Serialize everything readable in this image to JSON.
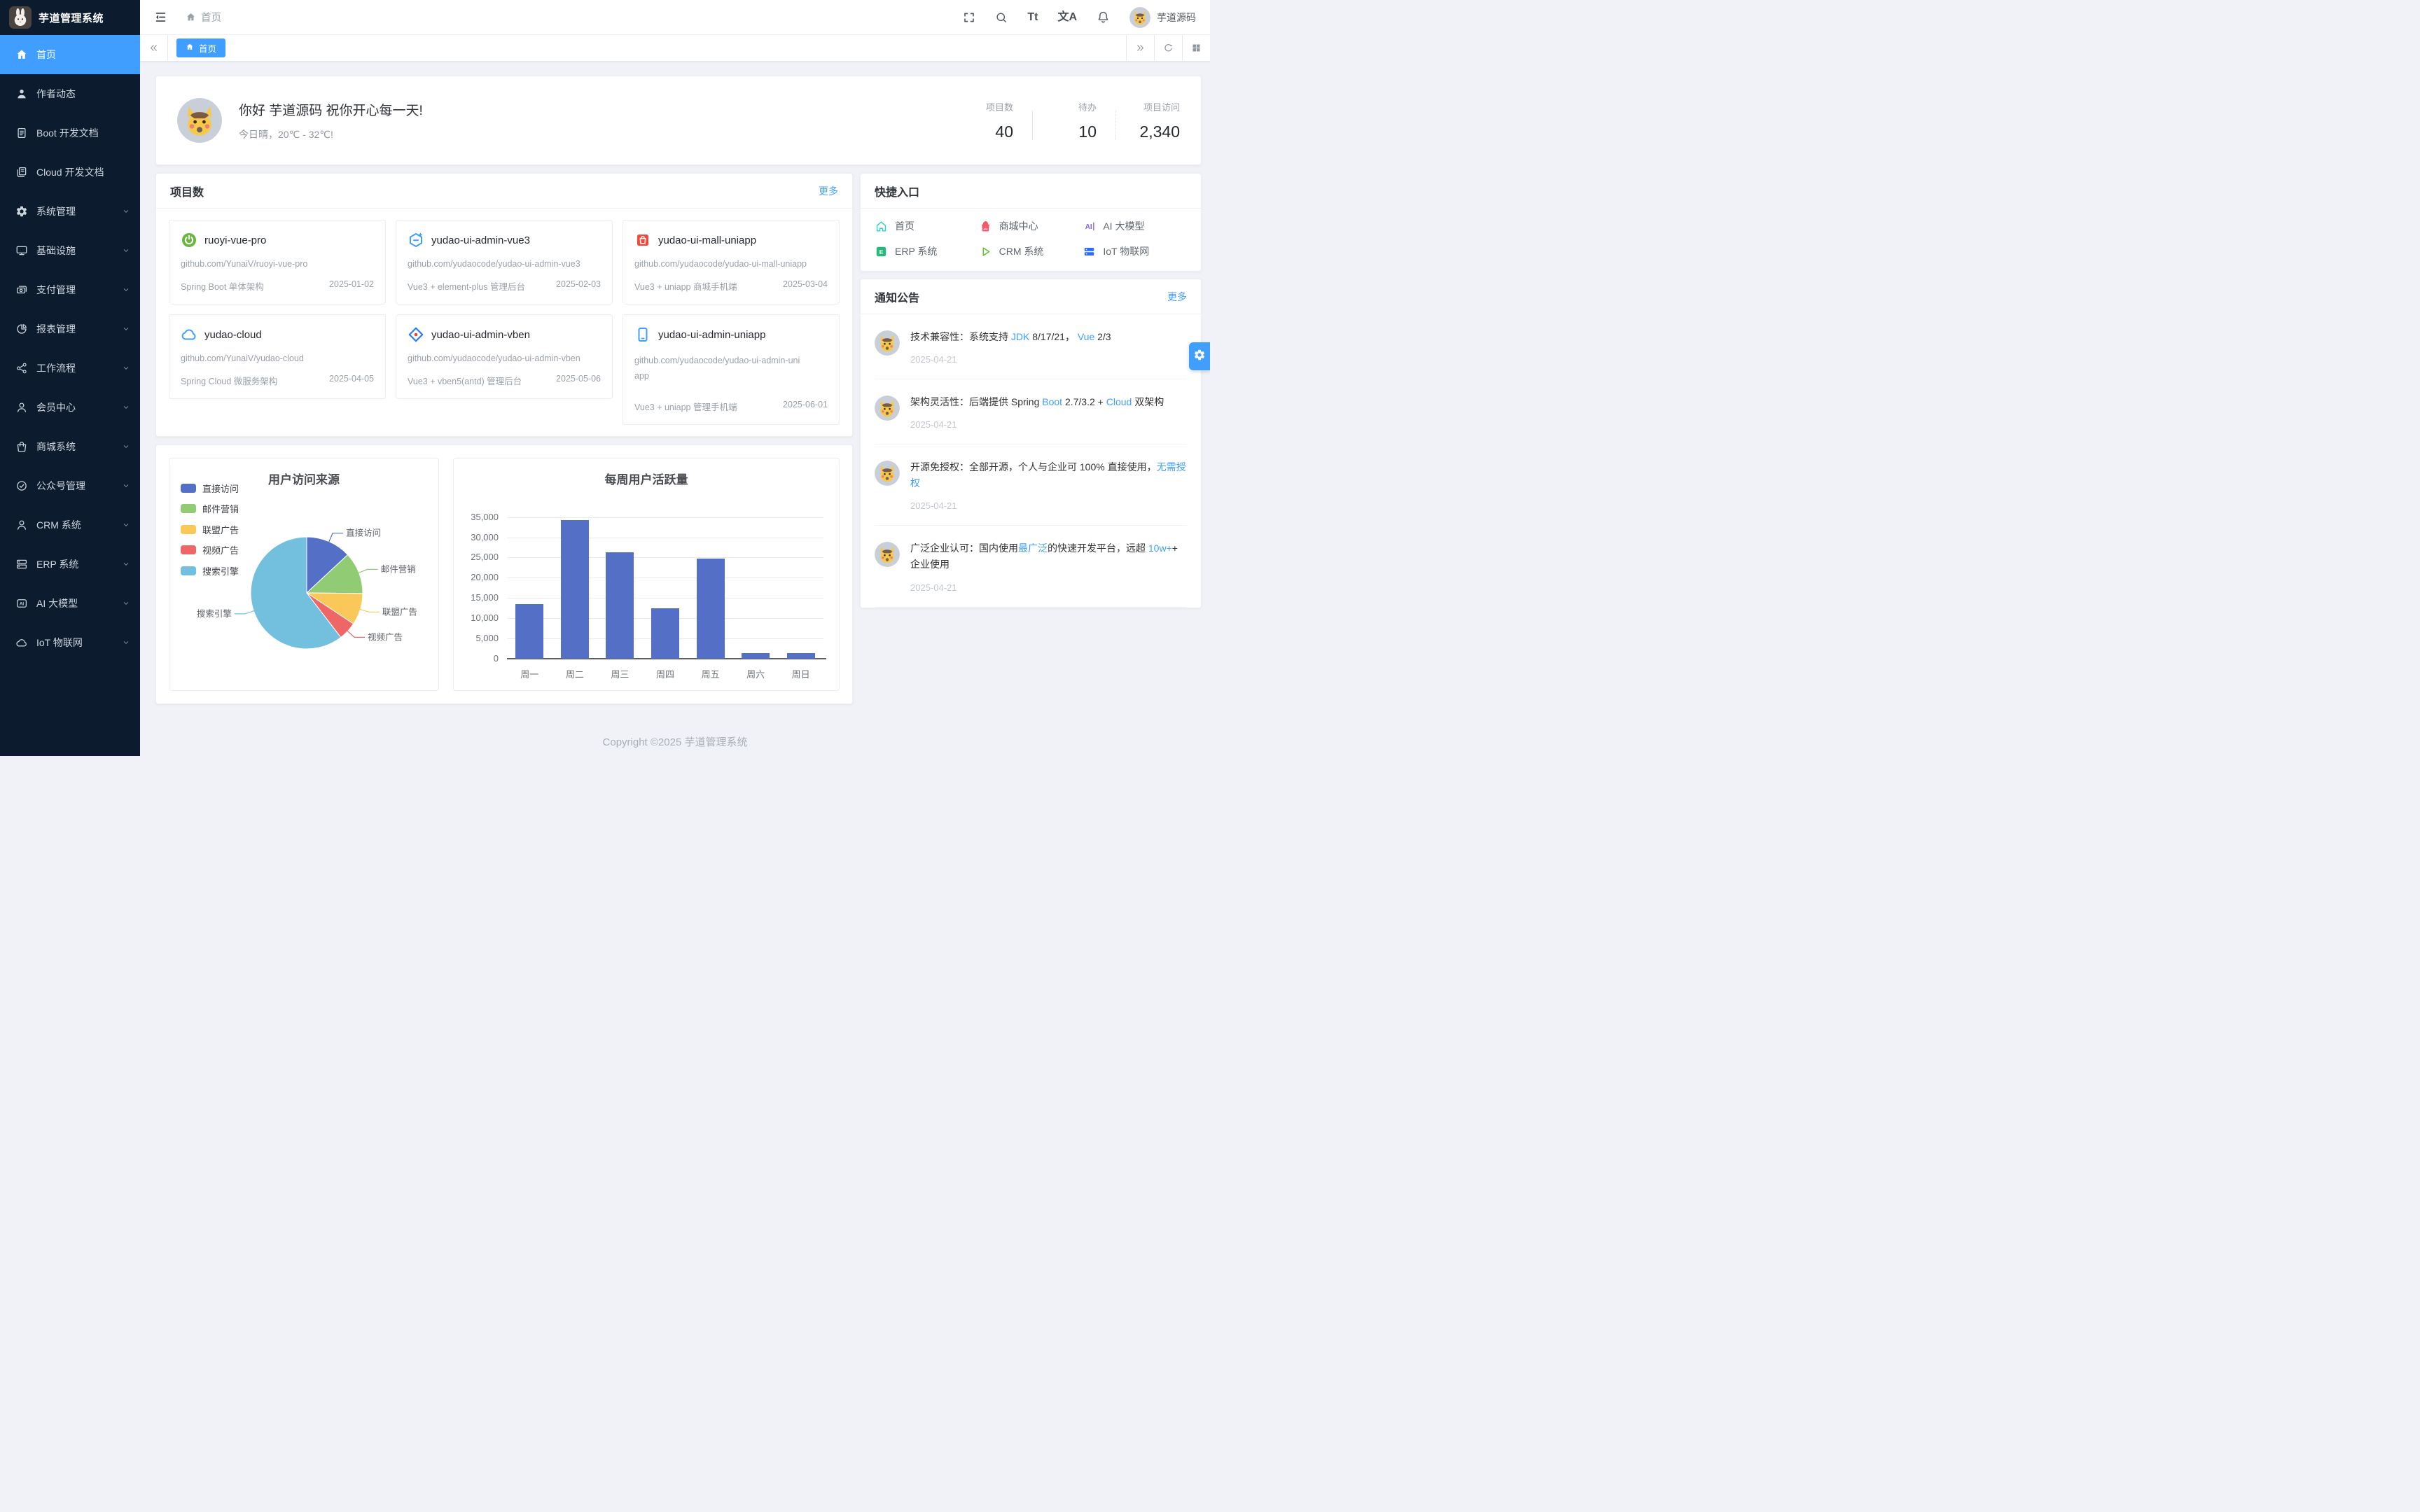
{
  "app": {
    "background": "#f0f2f7",
    "accent": "#409eff",
    "sidebar_bg": "#0c1b2d"
  },
  "sidebar": {
    "title": "芋道管理系统",
    "items": [
      {
        "id": "home",
        "label": "首页",
        "icon": "home",
        "active": true,
        "expandable": false
      },
      {
        "id": "author",
        "label": "作者动态",
        "icon": "user",
        "active": false,
        "expandable": false
      },
      {
        "id": "boot-doc",
        "label": "Boot 开发文档",
        "icon": "doc",
        "active": false,
        "expandable": false
      },
      {
        "id": "cloud-doc",
        "label": "Cloud 开发文档",
        "icon": "docs",
        "active": false,
        "expandable": false
      },
      {
        "id": "system",
        "label": "系统管理",
        "icon": "gear",
        "active": false,
        "expandable": true
      },
      {
        "id": "infra",
        "label": "基础设施",
        "icon": "monitor",
        "active": false,
        "expandable": true
      },
      {
        "id": "pay",
        "label": "支付管理",
        "icon": "payment",
        "active": false,
        "expandable": true
      },
      {
        "id": "report",
        "label": "报表管理",
        "icon": "pie",
        "active": false,
        "expandable": true
      },
      {
        "id": "workflow",
        "label": "工作流程",
        "icon": "workflow",
        "active": false,
        "expandable": true
      },
      {
        "id": "member",
        "label": "会员中心",
        "icon": "member",
        "active": false,
        "expandable": true
      },
      {
        "id": "mall",
        "label": "商城系统",
        "icon": "mall",
        "active": false,
        "expandable": true
      },
      {
        "id": "mp",
        "label": "公众号管理",
        "icon": "official",
        "active": false,
        "expandable": true
      },
      {
        "id": "crm",
        "label": "CRM 系统",
        "icon": "crm",
        "active": false,
        "expandable": true
      },
      {
        "id": "erp",
        "label": "ERP 系统",
        "icon": "erp",
        "active": false,
        "expandable": true
      },
      {
        "id": "ai",
        "label": "AI 大模型",
        "icon": "ai",
        "active": false,
        "expandable": true
      },
      {
        "id": "iot",
        "label": "IoT 物联网",
        "icon": "iot",
        "active": false,
        "expandable": true
      }
    ]
  },
  "navbar": {
    "breadcrumb": "首页",
    "size_icon_text": "Tt",
    "locale_icon_text": "文A",
    "username": "芋道源码"
  },
  "tabbar": {
    "active_tab": "首页"
  },
  "greeting": {
    "title": "你好 芋道源码 祝你开心每一天!",
    "subtitle": "今日晴，20℃ - 32℃!",
    "stats": [
      {
        "label": "项目数",
        "value": "40"
      },
      {
        "label": "待办",
        "value": "10"
      },
      {
        "label": "项目访问",
        "value": "2,340"
      }
    ]
  },
  "projects": {
    "title": "项目数",
    "more": "更多",
    "cards": [
      {
        "name": "ruoyi-vue-pro",
        "icon": "spring",
        "url": "github.com/YunaiV/ruoyi-vue-pro",
        "desc": "Spring Boot 单体架构",
        "date": "2025-01-02",
        "tall": false
      },
      {
        "name": "yudao-ui-admin-vue3",
        "icon": "element",
        "url": "github.com/yudaocode/yudao-ui-admin-vue3",
        "desc": "Vue3 + element-plus 管理后台",
        "date": "2025-02-03",
        "tall": false
      },
      {
        "name": "yudao-ui-mall-uniapp",
        "icon": "mallred",
        "url": "github.com/yudaocode/yudao-ui-mall-uniapp",
        "desc": "Vue3 + uniapp 商城手机端",
        "date": "2025-03-04",
        "tall": false
      },
      {
        "name": "yudao-cloud",
        "icon": "cloudblue",
        "url": "github.com/YunaiV/yudao-cloud",
        "desc": "Spring Cloud 微服务架构",
        "date": "2025-04-05",
        "tall": false
      },
      {
        "name": "yudao-ui-admin-vben",
        "icon": "vben",
        "url": "github.com/yudaocode/yudao-ui-admin-vben",
        "desc": "Vue3 + vben5(antd) 管理后台",
        "date": "2025-05-06",
        "tall": false
      },
      {
        "name": "yudao-ui-admin-uniapp",
        "icon": "phoneblue",
        "url": "github.com/yudaocode/yudao-ui-admin-uniapp",
        "desc": "Vue3 + uniapp 管理手机端",
        "date": "2025-06-01",
        "tall": true
      }
    ]
  },
  "quick": {
    "title": "快捷入口",
    "items": [
      {
        "label": "首页",
        "icon": "qhome",
        "color": "#2ed3c6"
      },
      {
        "label": "商城中心",
        "icon": "qmall",
        "color": "#f5586b"
      },
      {
        "label": "AI 大模型",
        "icon": "qai",
        "color": "#7d5dfb"
      },
      {
        "label": "ERP 系统",
        "icon": "qerp",
        "color": "#27b87c"
      },
      {
        "label": "CRM 系统",
        "icon": "qcrm",
        "color": "#5ec431"
      },
      {
        "label": "IoT 物联网",
        "icon": "qiot",
        "color": "#2e6cf6"
      }
    ]
  },
  "notices": {
    "title": "通知公告",
    "more": "更多",
    "items": [
      {
        "date": "2025-04-21",
        "segments": [
          {
            "text": "技术兼容性：系统支持 "
          },
          {
            "text": "JDK",
            "link": true
          },
          {
            "text": " 8/17/21， "
          },
          {
            "text": "Vue",
            "link": true
          },
          {
            "text": " 2/3"
          }
        ]
      },
      {
        "date": "2025-04-21",
        "segments": [
          {
            "text": "架构灵活性：后端提供 Spring "
          },
          {
            "text": "Boot",
            "link": true
          },
          {
            "text": " 2.7/3.2 + "
          },
          {
            "text": "Cloud",
            "link": true
          },
          {
            "text": " 双架构"
          }
        ]
      },
      {
        "date": "2025-04-21",
        "segments": [
          {
            "text": "开源免授权：全部开源，个人与企业可 100% 直接使用，"
          },
          {
            "text": "无需授权",
            "link": true
          }
        ]
      },
      {
        "date": "2025-04-21",
        "segments": [
          {
            "text": "广泛企业认可：国内使用"
          },
          {
            "text": "最广泛",
            "link": true
          },
          {
            "text": "的快速开发平台，远超 "
          },
          {
            "text": "10w+",
            "link": true
          },
          {
            "text": "+ 企业使用"
          }
        ]
      }
    ]
  },
  "footer": {
    "copyright": "Copyright ©2025 芋道管理系统"
  },
  "chart_data": [
    {
      "type": "pie",
      "title": "用户访问来源",
      "legend_position": "left",
      "legend": [
        "直接访问",
        "邮件营销",
        "联盟广告",
        "视频广告",
        "搜索引擎"
      ],
      "data": [
        {
          "name": "直接访问",
          "value": 335
        },
        {
          "name": "邮件营销",
          "value": 310
        },
        {
          "name": "联盟广告",
          "value": 234
        },
        {
          "name": "视频广告",
          "value": 135
        },
        {
          "name": "搜索引擎",
          "value": 1548
        }
      ],
      "colors": [
        "#5470c6",
        "#91cc75",
        "#fac858",
        "#ee6666",
        "#73c0de"
      ]
    },
    {
      "type": "bar",
      "title": "每周用户活跃量",
      "categories": [
        "周一",
        "周二",
        "周三",
        "周四",
        "周五",
        "周六",
        "周日"
      ],
      "values": [
        13400,
        34300,
        26300,
        12400,
        24700,
        1400,
        1400
      ],
      "ylim": [
        0,
        35000
      ],
      "ytick_step": 5000,
      "yticks": [
        "0",
        "5,000",
        "10,000",
        "15,000",
        "20,000",
        "25,000",
        "30,000",
        "35,000"
      ],
      "color": "#5470c6",
      "grid": true
    }
  ]
}
